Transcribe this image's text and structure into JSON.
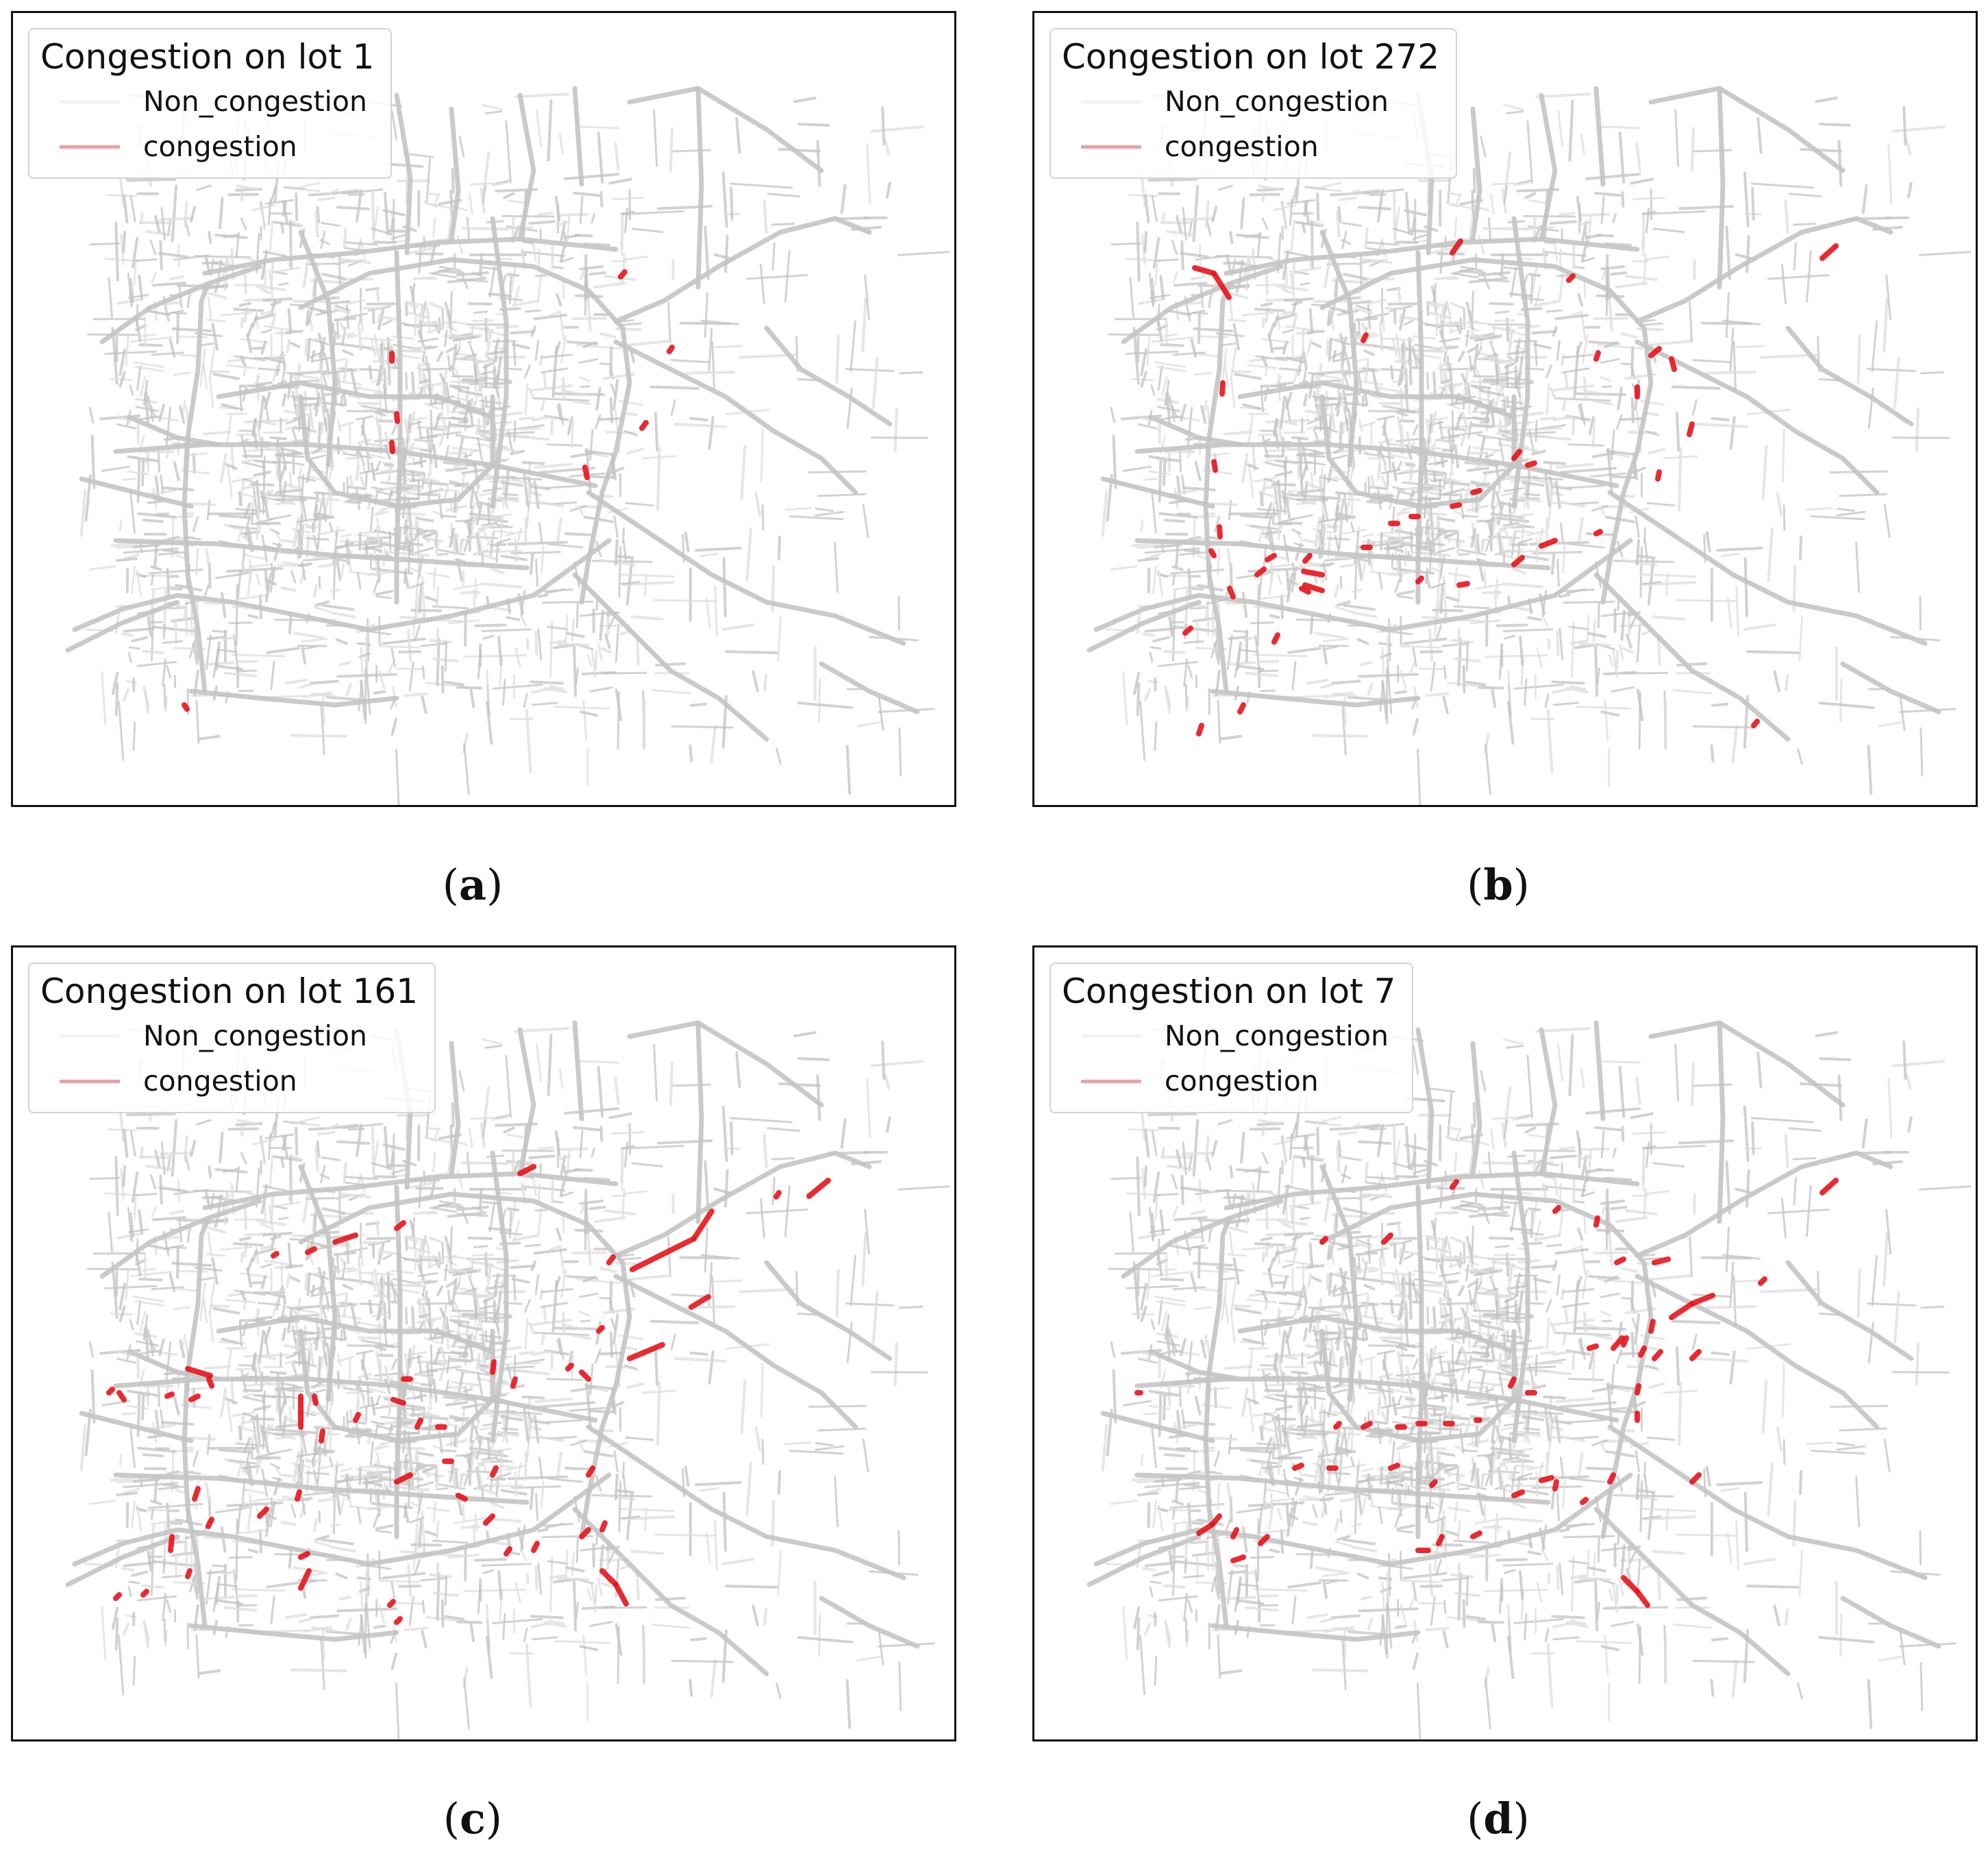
{
  "colors": {
    "road": "#c4c4c4",
    "road_light": "#dedede",
    "congestion": "#e8141b",
    "congestion_legend": "#f0a0a0",
    "non_congestion_legend": "#f2f2f2"
  },
  "legend": {
    "non_congestion_label": "Non_congestion",
    "congestion_label": "congestion"
  },
  "panels": [
    {
      "id": "a",
      "title": "Congestion on lot 1",
      "caption_open": "(",
      "caption_letter": "a",
      "caption_close": ")"
    },
    {
      "id": "b",
      "title": "Congestion on lot 272",
      "caption_open": "(",
      "caption_letter": "b",
      "caption_close": ")"
    },
    {
      "id": "c",
      "title": "Congestion on lot 161",
      "caption_open": "(",
      "caption_letter": "c",
      "caption_close": ")"
    },
    {
      "id": "d",
      "title": "Congestion on lot 7",
      "caption_open": "(",
      "caption_letter": "d",
      "caption_close": ")"
    }
  ]
}
